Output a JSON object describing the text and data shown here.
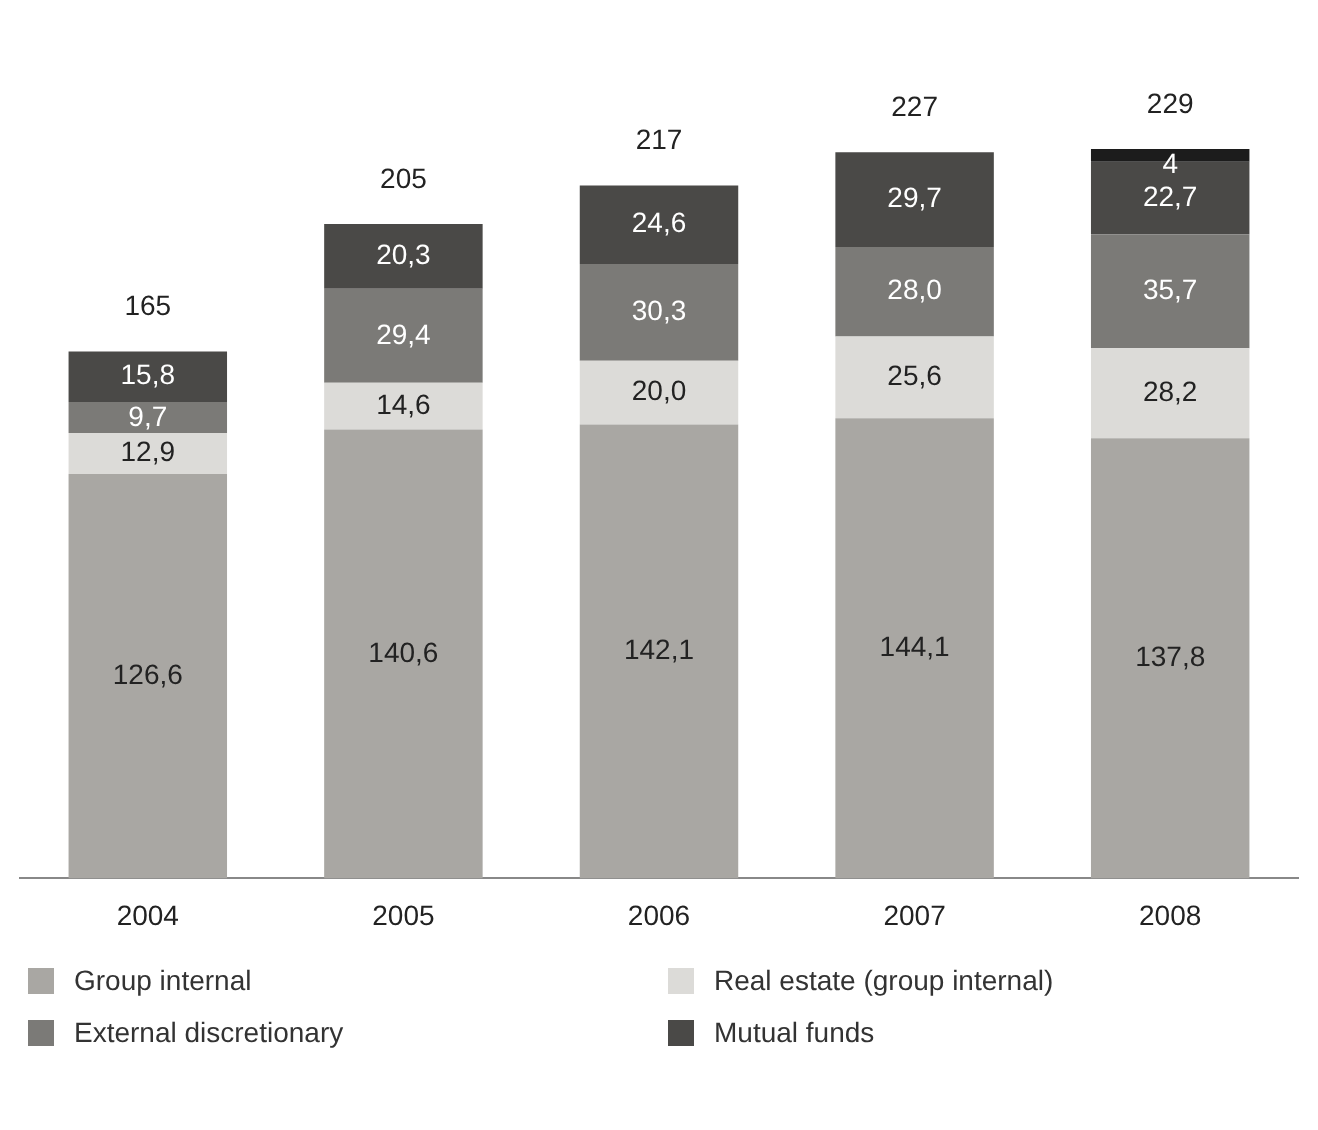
{
  "chart_data": {
    "type": "bar",
    "stacked": true,
    "categories": [
      "2004",
      "2005",
      "2006",
      "2007",
      "2008"
    ],
    "series": [
      {
        "name": "Group internal",
        "color": "#a9a7a3",
        "values": [
          126.6,
          140.6,
          142.1,
          144.1,
          137.8
        ],
        "value_labels": [
          "126,6",
          "140,6",
          "142,1",
          "144,1",
          "137,8"
        ]
      },
      {
        "name": "Real estate (group internal)",
        "color": "#dcdbd8",
        "values": [
          12.9,
          14.6,
          20.0,
          25.6,
          28.2
        ],
        "value_labels": [
          "12,9",
          "14,6",
          "20,0",
          "25,6",
          "28,2"
        ]
      },
      {
        "name": "External discretionary",
        "color": "#7b7a77",
        "values": [
          9.7,
          29.4,
          30.3,
          28.0,
          35.7
        ],
        "value_labels": [
          "9,7",
          "29,4",
          "30,3",
          "28,0",
          "35,7"
        ]
      },
      {
        "name": "Mutual funds",
        "color": "#4a4947",
        "values": [
          15.8,
          20.3,
          24.6,
          29.7,
          22.7
        ],
        "value_labels": [
          "15,8",
          "20,3",
          "24,6",
          "29,7",
          "22,7"
        ]
      },
      {
        "color": "#1c1c1c",
        "values": [
          null,
          null,
          null,
          null,
          4
        ],
        "value_labels": [
          null,
          null,
          null,
          null,
          "4"
        ]
      }
    ],
    "totals": [
      "165",
      "205",
      "217",
      "227",
      "229"
    ],
    "legend": "bottom",
    "grid": false
  }
}
